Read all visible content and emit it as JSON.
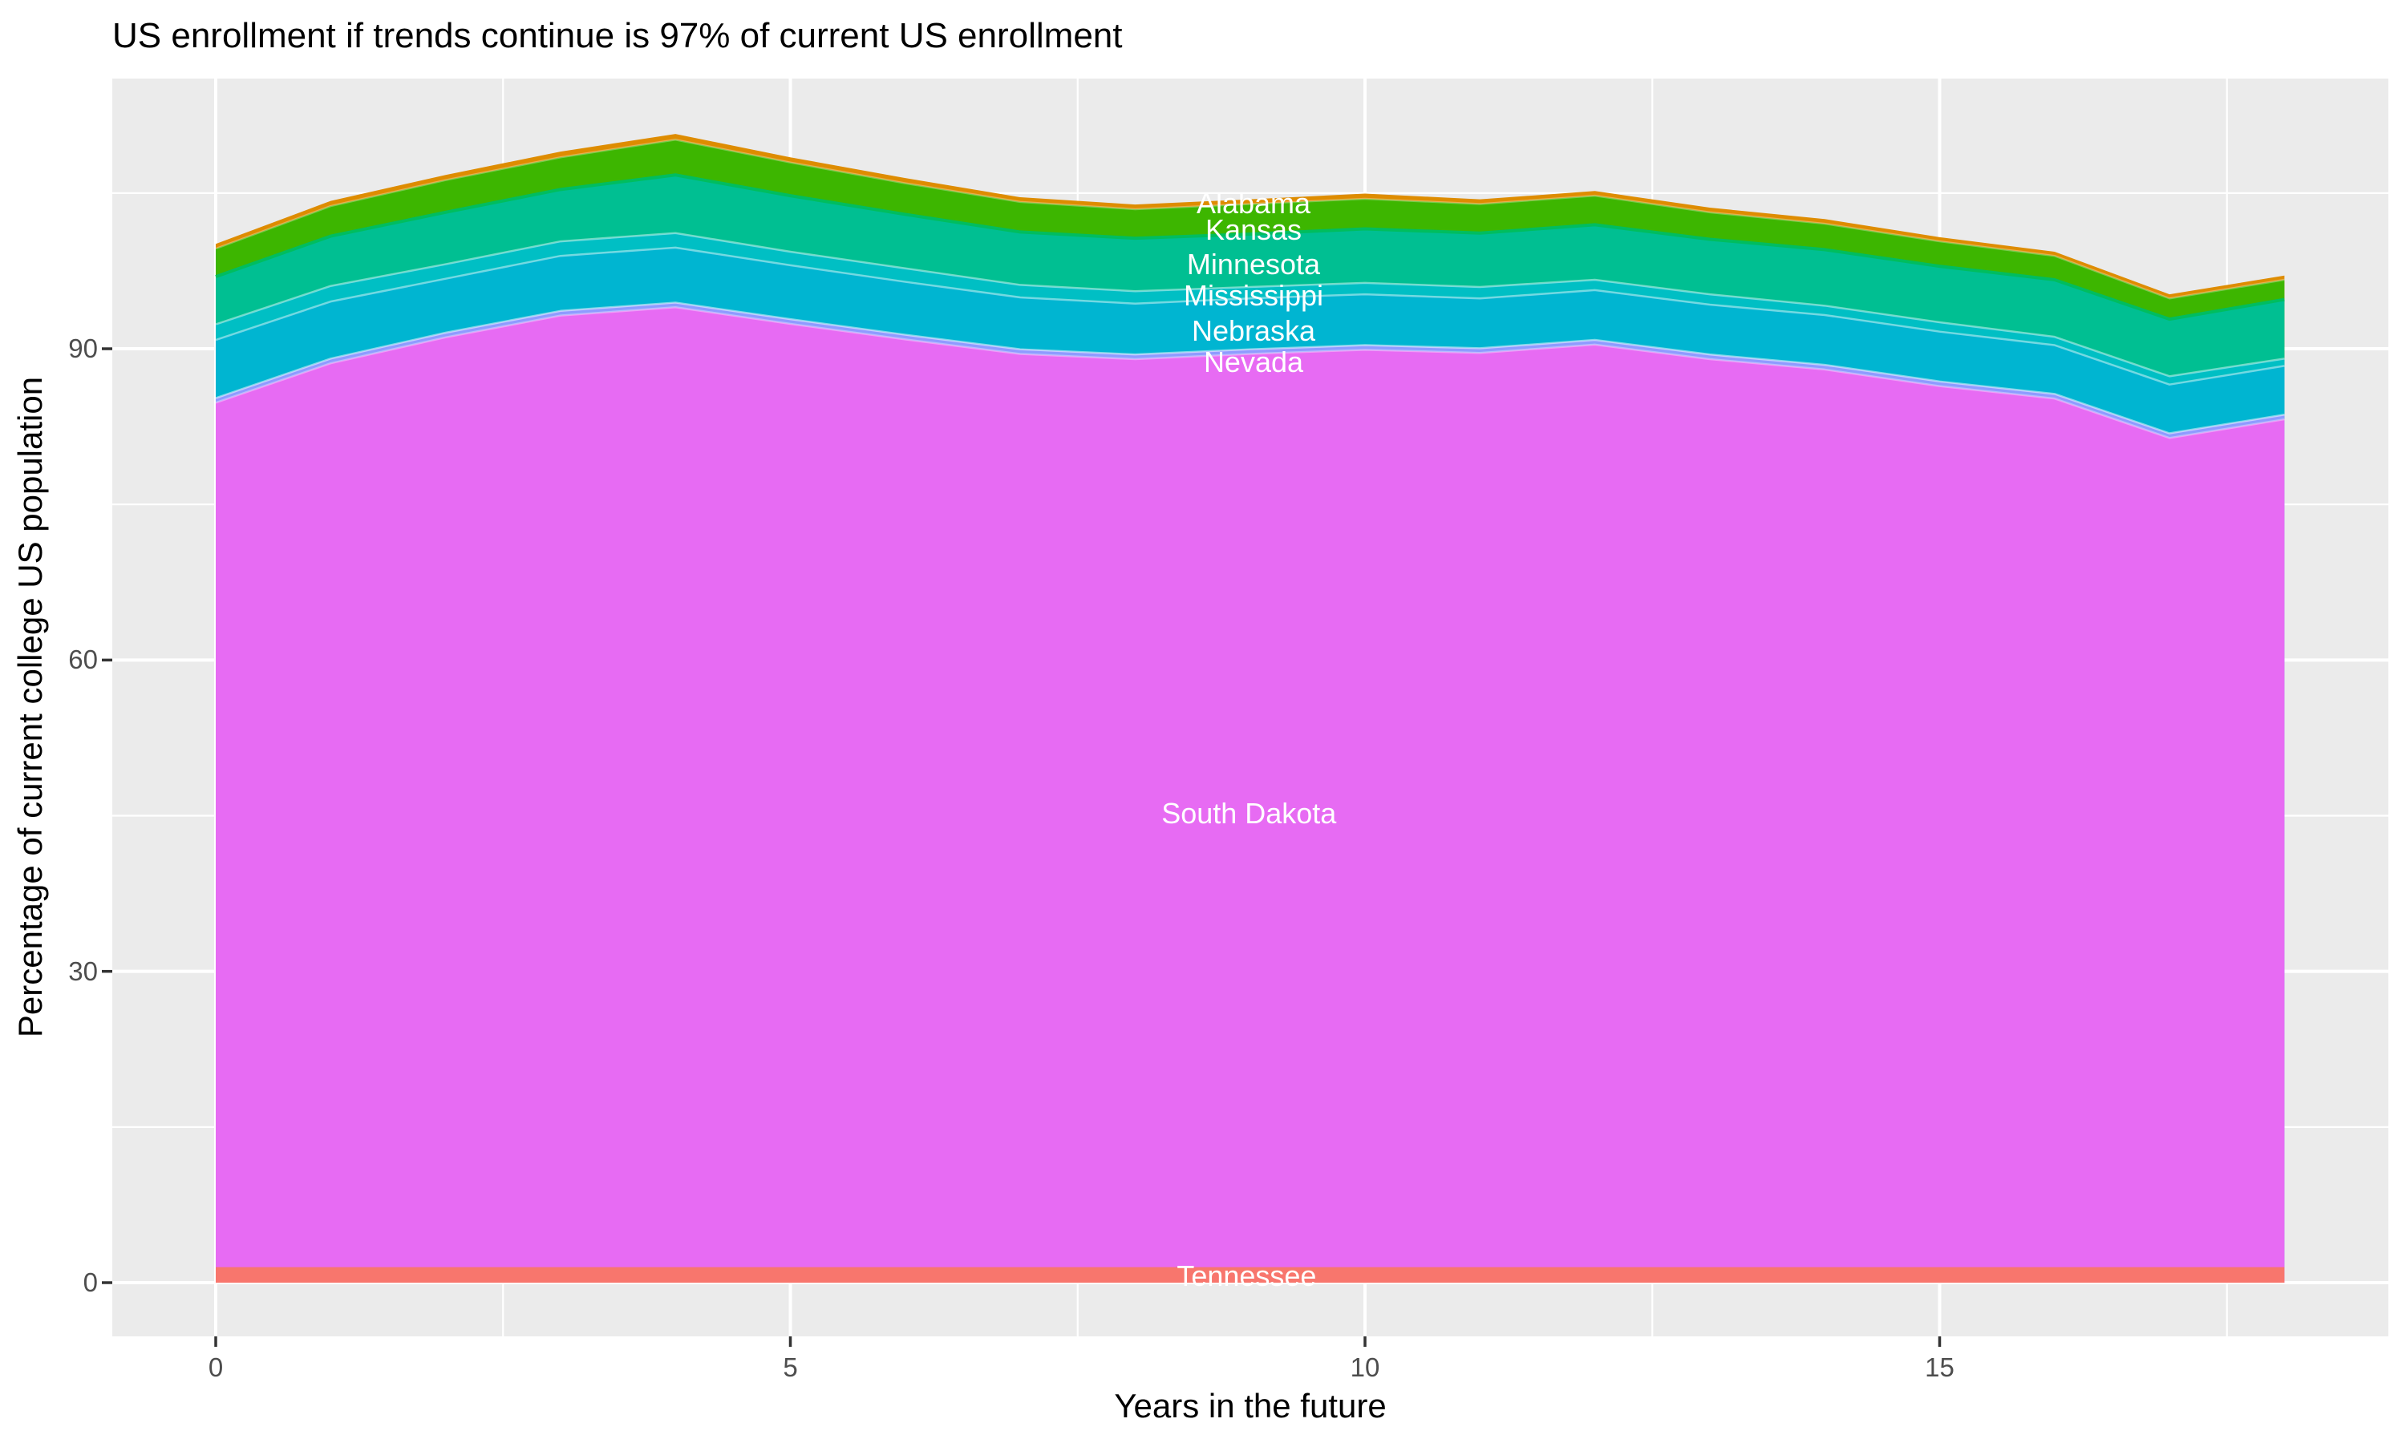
{
  "title": "US enrollment if trends continue is 97% of current US enrollment",
  "axes": {
    "x_title": "Years in the future",
    "y_title": "Percentage of current college US population",
    "x_ticks": [
      0,
      5,
      10,
      15
    ],
    "x_tick_labels": [
      "0",
      "5",
      "10",
      "15"
    ],
    "x_minor": [
      2.5,
      7.5,
      12.5,
      17.5
    ],
    "y_ticks": [
      0,
      30,
      60,
      90
    ],
    "y_tick_labels": [
      "0",
      "30",
      "60",
      "90"
    ],
    "y_minor": [
      15,
      45,
      75,
      105
    ]
  },
  "colors": {
    "panel": "#EBEBEB",
    "grid": "#FFFFFF",
    "tick_mark": "#333333",
    "tick_label": "#4D4D4D",
    "text": "#000000",
    "area_label": "#FFFFFF"
  },
  "chart_data": {
    "type": "area",
    "stacked": true,
    "title": "US enrollment if trends continue is 97% of current US enrollment",
    "xlabel": "Years in the future",
    "ylabel": "Percentage of current college US population",
    "xlim": [
      0,
      18
    ],
    "ylim": [
      -5,
      116
    ],
    "grid": true,
    "legend": "none",
    "x": [
      0,
      1,
      2,
      3,
      4,
      5,
      6,
      7,
      8,
      9,
      10,
      11,
      12,
      13,
      14,
      15,
      16,
      17,
      18
    ],
    "series": [
      {
        "name": "tennessee",
        "label": "Tennessee",
        "color": "#F8766D",
        "edge": null,
        "values": [
          1.5,
          1.5,
          1.5,
          1.5,
          1.5,
          1.5,
          1.5,
          1.5,
          1.5,
          1.5,
          1.5,
          1.5,
          1.5,
          1.5,
          1.5,
          1.5,
          1.5,
          1.5,
          1.5
        ]
      },
      {
        "name": "south_dakota",
        "label": "South Dakota",
        "color": "#E76BF3",
        "edge": "rgba(255,255,255,0.35)",
        "values": [
          83.3,
          87.1,
          89.6,
          91.7,
          92.5,
          90.9,
          89.4,
          88.0,
          87.5,
          88.0,
          88.4,
          88.1,
          88.9,
          87.5,
          86.5,
          84.9,
          83.7,
          79.9,
          81.7
        ]
      },
      {
        "name": "nevada",
        "label": "Nevada",
        "color": "#8F9BFF",
        "edge": "rgba(255,255,255,0.5)",
        "values": [
          0.45,
          0.45,
          0.45,
          0.45,
          0.45,
          0.45,
          0.45,
          0.45,
          0.45,
          0.45,
          0.45,
          0.45,
          0.45,
          0.45,
          0.45,
          0.45,
          0.45,
          0.45,
          0.45
        ]
      },
      {
        "name": "nebraska",
        "label": "Nebraska",
        "color": "#00B5D1",
        "edge": "rgba(255,255,255,0.45)",
        "values": [
          5.6,
          5.5,
          5.2,
          5.3,
          5.3,
          5.2,
          5.1,
          5.0,
          4.9,
          4.9,
          4.9,
          4.8,
          4.8,
          4.8,
          4.8,
          4.8,
          4.7,
          4.7,
          4.7
        ]
      },
      {
        "name": "mississippi",
        "label": "Mississippi",
        "color": "#00BFC4",
        "edge": "rgba(255,255,255,0.45)",
        "values": [
          1.5,
          1.5,
          1.4,
          1.4,
          1.4,
          1.3,
          1.3,
          1.2,
          1.2,
          1.1,
          1.1,
          1.1,
          1.0,
          1.0,
          0.9,
          0.9,
          0.8,
          0.8,
          0.7
        ]
      },
      {
        "name": "minnesota",
        "label": "Minnesota",
        "color": "#00BF92",
        "edge": "#00BD5F",
        "values": [
          4.6,
          4.8,
          5.0,
          5.0,
          5.6,
          5.4,
          5.2,
          5.1,
          5.1,
          5.1,
          5.2,
          5.2,
          5.3,
          5.3,
          5.4,
          5.4,
          5.5,
          5.5,
          5.7
        ]
      },
      {
        "name": "kansas",
        "label": "Kansas",
        "color": "#3DB600",
        "edge": "rgba(255,255,255,0.3)",
        "values": [
          2.7,
          2.9,
          3.1,
          3.1,
          3.4,
          3.2,
          3.0,
          2.9,
          2.8,
          2.9,
          2.9,
          2.8,
          2.8,
          2.6,
          2.5,
          2.4,
          2.3,
          2.0,
          1.9
        ]
      },
      {
        "name": "alabama",
        "label": "Alabama",
        "color": "#DE8C00",
        "edge": null,
        "values": [
          0.45,
          0.5,
          0.5,
          0.55,
          0.55,
          0.5,
          0.5,
          0.45,
          0.45,
          0.45,
          0.5,
          0.45,
          0.45,
          0.45,
          0.45,
          0.4,
          0.4,
          0.4,
          0.4
        ]
      }
    ],
    "labels": [
      {
        "series": "alabama",
        "text": "Alabama",
        "t": 9.03,
        "v": 104.0
      },
      {
        "series": "kansas",
        "text": "Kansas",
        "t": 9.03,
        "v": 101.4
      },
      {
        "series": "minnesota",
        "text": "Minnesota",
        "t": 9.03,
        "v": 98.1
      },
      {
        "series": "mississippi",
        "text": "Mississippi",
        "t": 9.03,
        "v": 95.1
      },
      {
        "series": "nebraska",
        "text": "Nebraska",
        "t": 9.03,
        "v": 91.7
      },
      {
        "series": "nevada",
        "text": "Nevada",
        "t": 9.03,
        "v": 88.7
      },
      {
        "series": "south_dakota",
        "text": "South Dakota",
        "t": 8.99,
        "v": 45.2
      },
      {
        "series": "tennessee",
        "text": "Tennessee",
        "t": 8.97,
        "v": 0.6
      }
    ]
  }
}
